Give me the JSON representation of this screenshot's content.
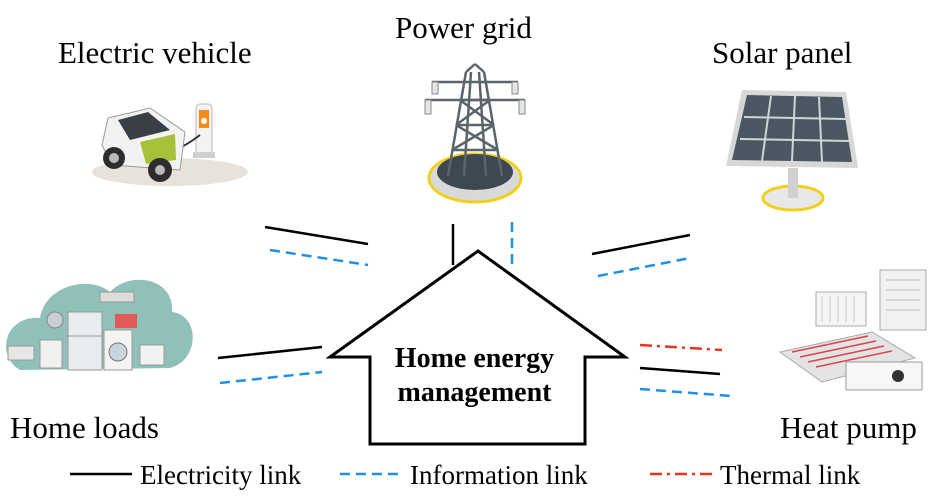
{
  "labels": {
    "electric_vehicle": "Electric vehicle",
    "power_grid": "Power grid",
    "solar_panel": "Solar panel",
    "home_loads": "Home loads",
    "heat_pump": "Heat pump"
  },
  "center": {
    "line1": "Home energy",
    "line2": "management"
  },
  "legend": {
    "electricity": "Electricity link",
    "information": "Information link",
    "thermal": "Thermal link"
  },
  "colors": {
    "electricity": "#000000",
    "information": "#1e90e8",
    "thermal": "#e8341c"
  }
}
